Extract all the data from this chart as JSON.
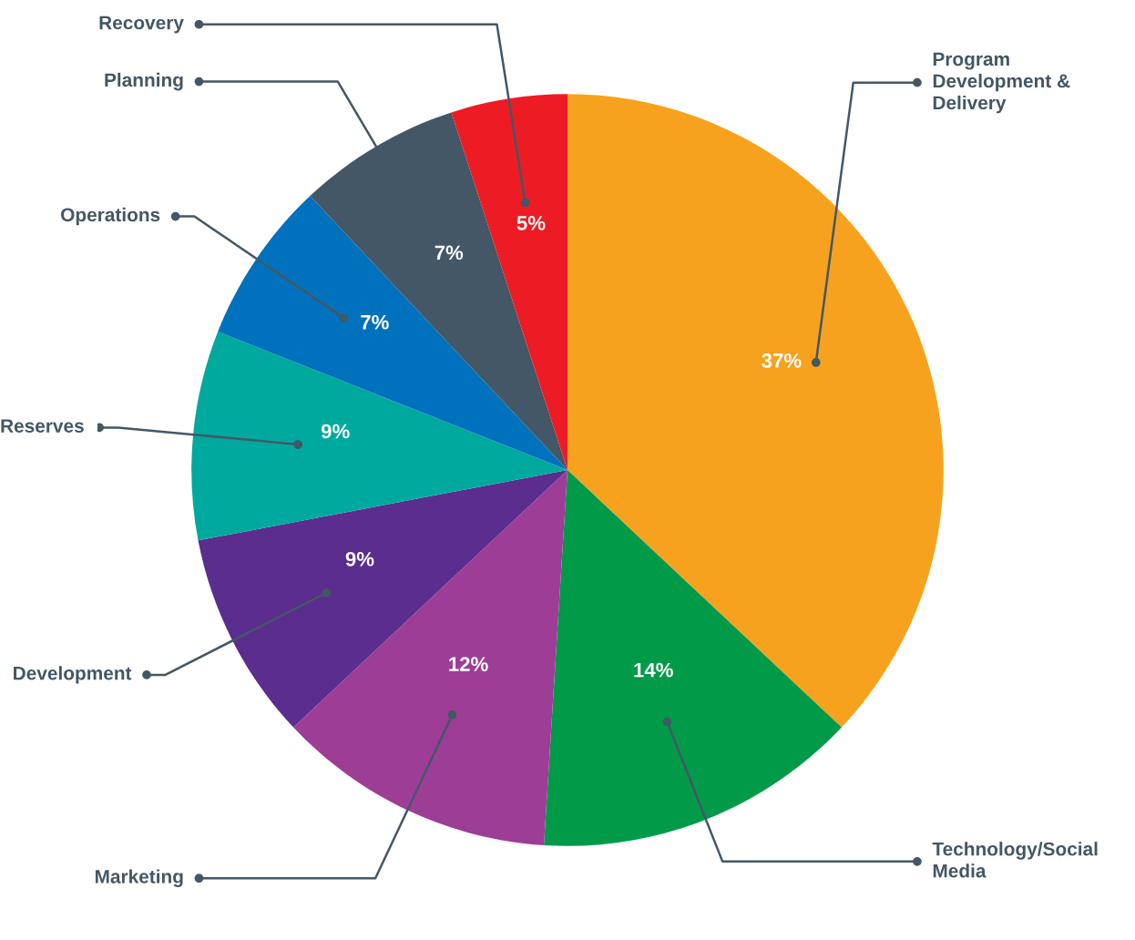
{
  "chart_data": {
    "type": "pie",
    "categories": [
      "Program\nDevelopment &\nDelivery",
      "Technology/Social\nMedia",
      "Marketing",
      "Development",
      "Reserves",
      "Operations",
      "Planning",
      "Recovery"
    ],
    "values": [
      37,
      14,
      12,
      9,
      9,
      7,
      7,
      5
    ],
    "value_labels": [
      "37%",
      "14%",
      "12%",
      "9%",
      "9%",
      "7%",
      "7%",
      "5%"
    ],
    "colors": [
      "#f7a21e",
      "#009a49",
      "#9e3d96",
      "#5b2d8e",
      "#00a99d",
      "#0071bc",
      "#435766",
      "#ed1c24"
    ]
  }
}
